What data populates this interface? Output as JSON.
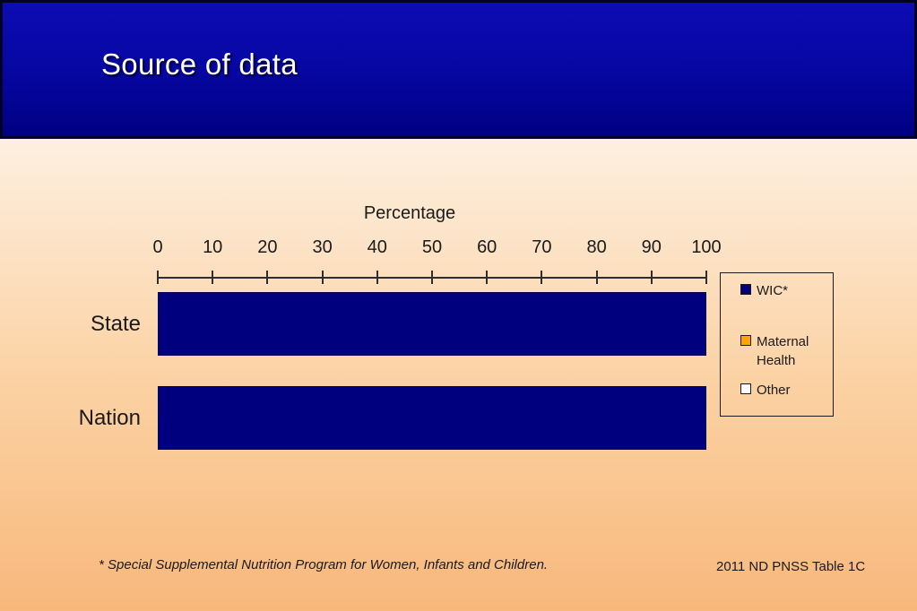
{
  "slide": {
    "title": "Source of data",
    "footnote": "*  Special Supplemental Nutrition Program for Women, Infants and Children.",
    "source_ref": "2011 ND PNSS Table 1C"
  },
  "chart_data": {
    "type": "bar",
    "orientation": "horizontal",
    "title": "",
    "axis_title": "Percentage",
    "categories": [
      "State",
      "Nation"
    ],
    "series": [
      {
        "name": "WIC*",
        "color": "#00007f",
        "values": [
          100,
          100
        ]
      },
      {
        "name": "Maternal Health",
        "color": "#ffa500",
        "values": [
          0,
          0
        ]
      },
      {
        "name": "Other",
        "color": "#ffffff",
        "values": [
          0,
          0
        ]
      }
    ],
    "xlim": [
      0,
      100
    ],
    "ticks": [
      0,
      10,
      20,
      30,
      40,
      50,
      60,
      70,
      80,
      90,
      100
    ],
    "legend_position": "right",
    "grid": false
  },
  "colors": {
    "header_blue": "#0606a0",
    "bar_navy": "#00007f",
    "maternal_orange": "#ffa500",
    "other_white": "#ffffff",
    "background_top": "#fdf2e5",
    "background_bottom": "#f8b87c",
    "text": "#1a1a1a"
  }
}
